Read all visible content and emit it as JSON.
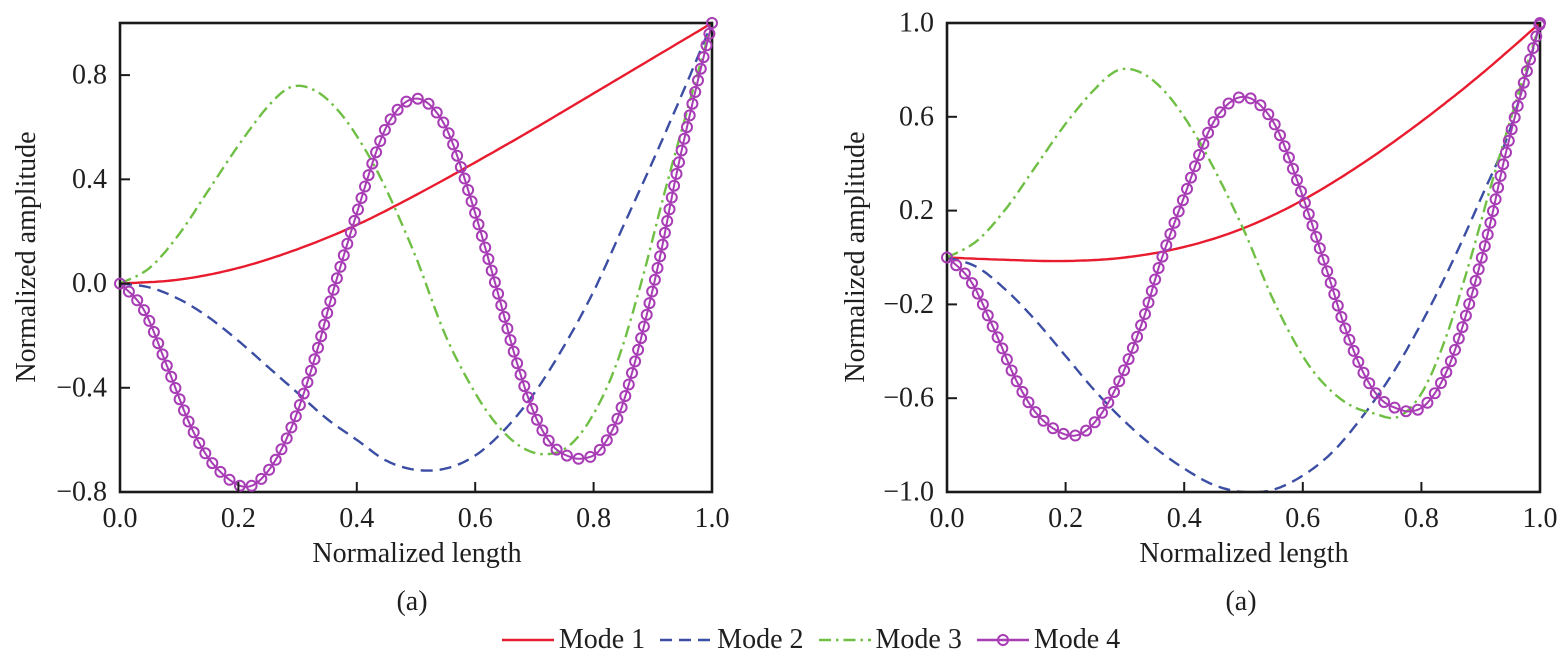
{
  "colors": {
    "axis": "#1a1a1a",
    "text": "#1f1f1f",
    "background": "#ffffff"
  },
  "legend": {
    "position": "bottom-center"
  },
  "chart_data": [
    {
      "type": "line",
      "title": "",
      "caption": "(a)",
      "xlabel": "Normalized length",
      "ylabel": "Normalized amplitude",
      "xlim": [
        0,
        1
      ],
      "ylim": [
        -0.8,
        1.0
      ],
      "grid": false,
      "xticks": {
        "values": [
          0,
          0.2,
          0.4,
          0.6,
          0.8,
          1.0
        ],
        "labels": [
          "0.0",
          "0.2",
          "0.4",
          "0.6",
          "0.8",
          "1.0"
        ]
      },
      "yticks": {
        "values": [
          -0.8,
          -0.4,
          0.0,
          0.4,
          0.8
        ],
        "labels": [
          "−0.8",
          "−0.4",
          "0.0",
          "0.4",
          "0.8"
        ]
      },
      "series": [
        {
          "name": "Mode 1",
          "color": "#e81c2e",
          "style": "solid",
          "marker": "none",
          "x": [
            0,
            0.1,
            0.2,
            0.3,
            0.4,
            0.5,
            0.6,
            0.7,
            0.8,
            0.9,
            1
          ],
          "y": [
            0,
            0.015,
            0.06,
            0.132,
            0.225,
            0.34,
            0.465,
            0.595,
            0.73,
            0.865,
            1
          ]
        },
        {
          "name": "Mode 2",
          "color": "#3b4ea4",
          "style": "dashed",
          "marker": "none",
          "x": [
            0,
            0.05,
            0.1,
            0.15,
            0.2,
            0.25,
            0.3,
            0.35,
            0.4,
            0.45,
            0.5,
            0.55,
            0.6,
            0.65,
            0.7,
            0.75,
            0.8,
            0.85,
            0.9,
            0.95,
            1
          ],
          "y": [
            0,
            -0.015,
            -0.06,
            -0.13,
            -0.22,
            -0.32,
            -0.42,
            -0.52,
            -0.6,
            -0.68,
            -0.715,
            -0.71,
            -0.66,
            -0.56,
            -0.42,
            -0.24,
            -0.03,
            0.22,
            0.47,
            0.73,
            1
          ]
        },
        {
          "name": "Mode 3",
          "color": "#6fbf44",
          "style": "dashdot",
          "marker": "none",
          "x": [
            0,
            0.05,
            0.1,
            0.15,
            0.2,
            0.25,
            0.29,
            0.33,
            0.37,
            0.41,
            0.45,
            0.5,
            0.55,
            0.6,
            0.64,
            0.68,
            0.72,
            0.76,
            0.8,
            0.84,
            0.88,
            0.92,
            0.96,
            1
          ],
          "y": [
            0,
            0.06,
            0.19,
            0.36,
            0.53,
            0.68,
            0.755,
            0.74,
            0.66,
            0.53,
            0.36,
            0.1,
            -0.2,
            -0.42,
            -0.55,
            -0.63,
            -0.655,
            -0.62,
            -0.5,
            -0.3,
            0,
            0.35,
            0.68,
            1
          ]
        },
        {
          "name": "Mode 4",
          "color": "#a73cb5",
          "style": "solid",
          "marker": "circle",
          "x": [
            0,
            0.04,
            0.08,
            0.12,
            0.16,
            0.21,
            0.25,
            0.29,
            0.33,
            0.36,
            0.4,
            0.44,
            0.47,
            0.5,
            0.53,
            0.56,
            0.6,
            0.64,
            0.67,
            0.7,
            0.73,
            0.76,
            0.785,
            0.81,
            0.84,
            0.87,
            0.91,
            0.94,
            0.97,
            1
          ],
          "y": [
            0,
            -0.1,
            -0.32,
            -0.55,
            -0.7,
            -0.78,
            -0.72,
            -0.55,
            -0.28,
            -0.03,
            0.27,
            0.55,
            0.67,
            0.71,
            0.67,
            0.55,
            0.27,
            -0.05,
            -0.3,
            -0.5,
            -0.62,
            -0.665,
            -0.67,
            -0.64,
            -0.52,
            -0.3,
            0.08,
            0.42,
            0.72,
            1
          ]
        }
      ]
    },
    {
      "type": "line",
      "title": "",
      "caption": "(a)",
      "xlabel": "Normalized length",
      "ylabel": "Normalized amplitude",
      "xlim": [
        0,
        1
      ],
      "ylim": [
        -1.0,
        1.0
      ],
      "grid": false,
      "xticks": {
        "values": [
          0,
          0.2,
          0.4,
          0.6,
          0.8,
          1.0
        ],
        "labels": [
          "0.0",
          "0.2",
          "0.4",
          "0.6",
          "0.8",
          "1.0"
        ]
      },
      "yticks": {
        "values": [
          -1.0,
          -0.6,
          -0.2,
          0.2,
          0.6,
          1.0
        ],
        "labels": [
          "−1.0",
          "−0.6",
          "−0.2",
          "0.2",
          "0.6",
          "1.0"
        ]
      },
      "series": [
        {
          "name": "Mode 1",
          "color": "#e81c2e",
          "style": "solid",
          "marker": "none",
          "x": [
            0,
            0.1,
            0.2,
            0.3,
            0.4,
            0.5,
            0.6,
            0.7,
            0.8,
            0.9,
            1
          ],
          "y": [
            0,
            -0.01,
            -0.015,
            0,
            0.045,
            0.125,
            0.245,
            0.4,
            0.58,
            0.78,
            1
          ]
        },
        {
          "name": "Mode 2",
          "color": "#3b4ea4",
          "style": "dashed",
          "marker": "none",
          "x": [
            0,
            0.05,
            0.1,
            0.15,
            0.2,
            0.25,
            0.3,
            0.35,
            0.4,
            0.45,
            0.5,
            0.55,
            0.6,
            0.65,
            0.7,
            0.75,
            0.8,
            0.85,
            0.9,
            0.95,
            1
          ],
          "y": [
            0,
            -0.04,
            -0.14,
            -0.27,
            -0.42,
            -0.57,
            -0.7,
            -0.81,
            -0.9,
            -0.97,
            -1,
            -0.99,
            -0.93,
            -0.83,
            -0.68,
            -0.5,
            -0.28,
            -0.03,
            0.25,
            0.55,
            1
          ]
        },
        {
          "name": "Mode 3",
          "color": "#6fbf44",
          "style": "dashdot",
          "marker": "none",
          "x": [
            0,
            0.05,
            0.1,
            0.15,
            0.2,
            0.25,
            0.29,
            0.33,
            0.37,
            0.41,
            0.45,
            0.5,
            0.55,
            0.6,
            0.64,
            0.68,
            0.72,
            0.76,
            0.8,
            0.84,
            0.88,
            0.92,
            0.96,
            1
          ],
          "y": [
            0,
            0.07,
            0.21,
            0.39,
            0.57,
            0.72,
            0.8,
            0.785,
            0.7,
            0.56,
            0.38,
            0.12,
            -0.18,
            -0.42,
            -0.55,
            -0.63,
            -0.665,
            -0.68,
            -0.58,
            -0.35,
            -0.03,
            0.33,
            0.67,
            1
          ]
        },
        {
          "name": "Mode 4",
          "color": "#a73cb5",
          "style": "solid",
          "marker": "circle",
          "x": [
            0,
            0.04,
            0.08,
            0.12,
            0.16,
            0.21,
            0.25,
            0.29,
            0.33,
            0.36,
            0.4,
            0.44,
            0.47,
            0.5,
            0.53,
            0.56,
            0.6,
            0.64,
            0.67,
            0.7,
            0.73,
            0.76,
            0.785,
            0.81,
            0.84,
            0.87,
            0.91,
            0.94,
            0.97,
            1
          ],
          "y": [
            0,
            -0.1,
            -0.31,
            -0.54,
            -0.69,
            -0.76,
            -0.7,
            -0.53,
            -0.27,
            -0.02,
            0.26,
            0.53,
            0.645,
            0.685,
            0.645,
            0.53,
            0.26,
            -0.05,
            -0.29,
            -0.48,
            -0.6,
            -0.645,
            -0.655,
            -0.62,
            -0.5,
            -0.29,
            0.08,
            0.42,
            0.72,
            1
          ]
        }
      ]
    }
  ]
}
